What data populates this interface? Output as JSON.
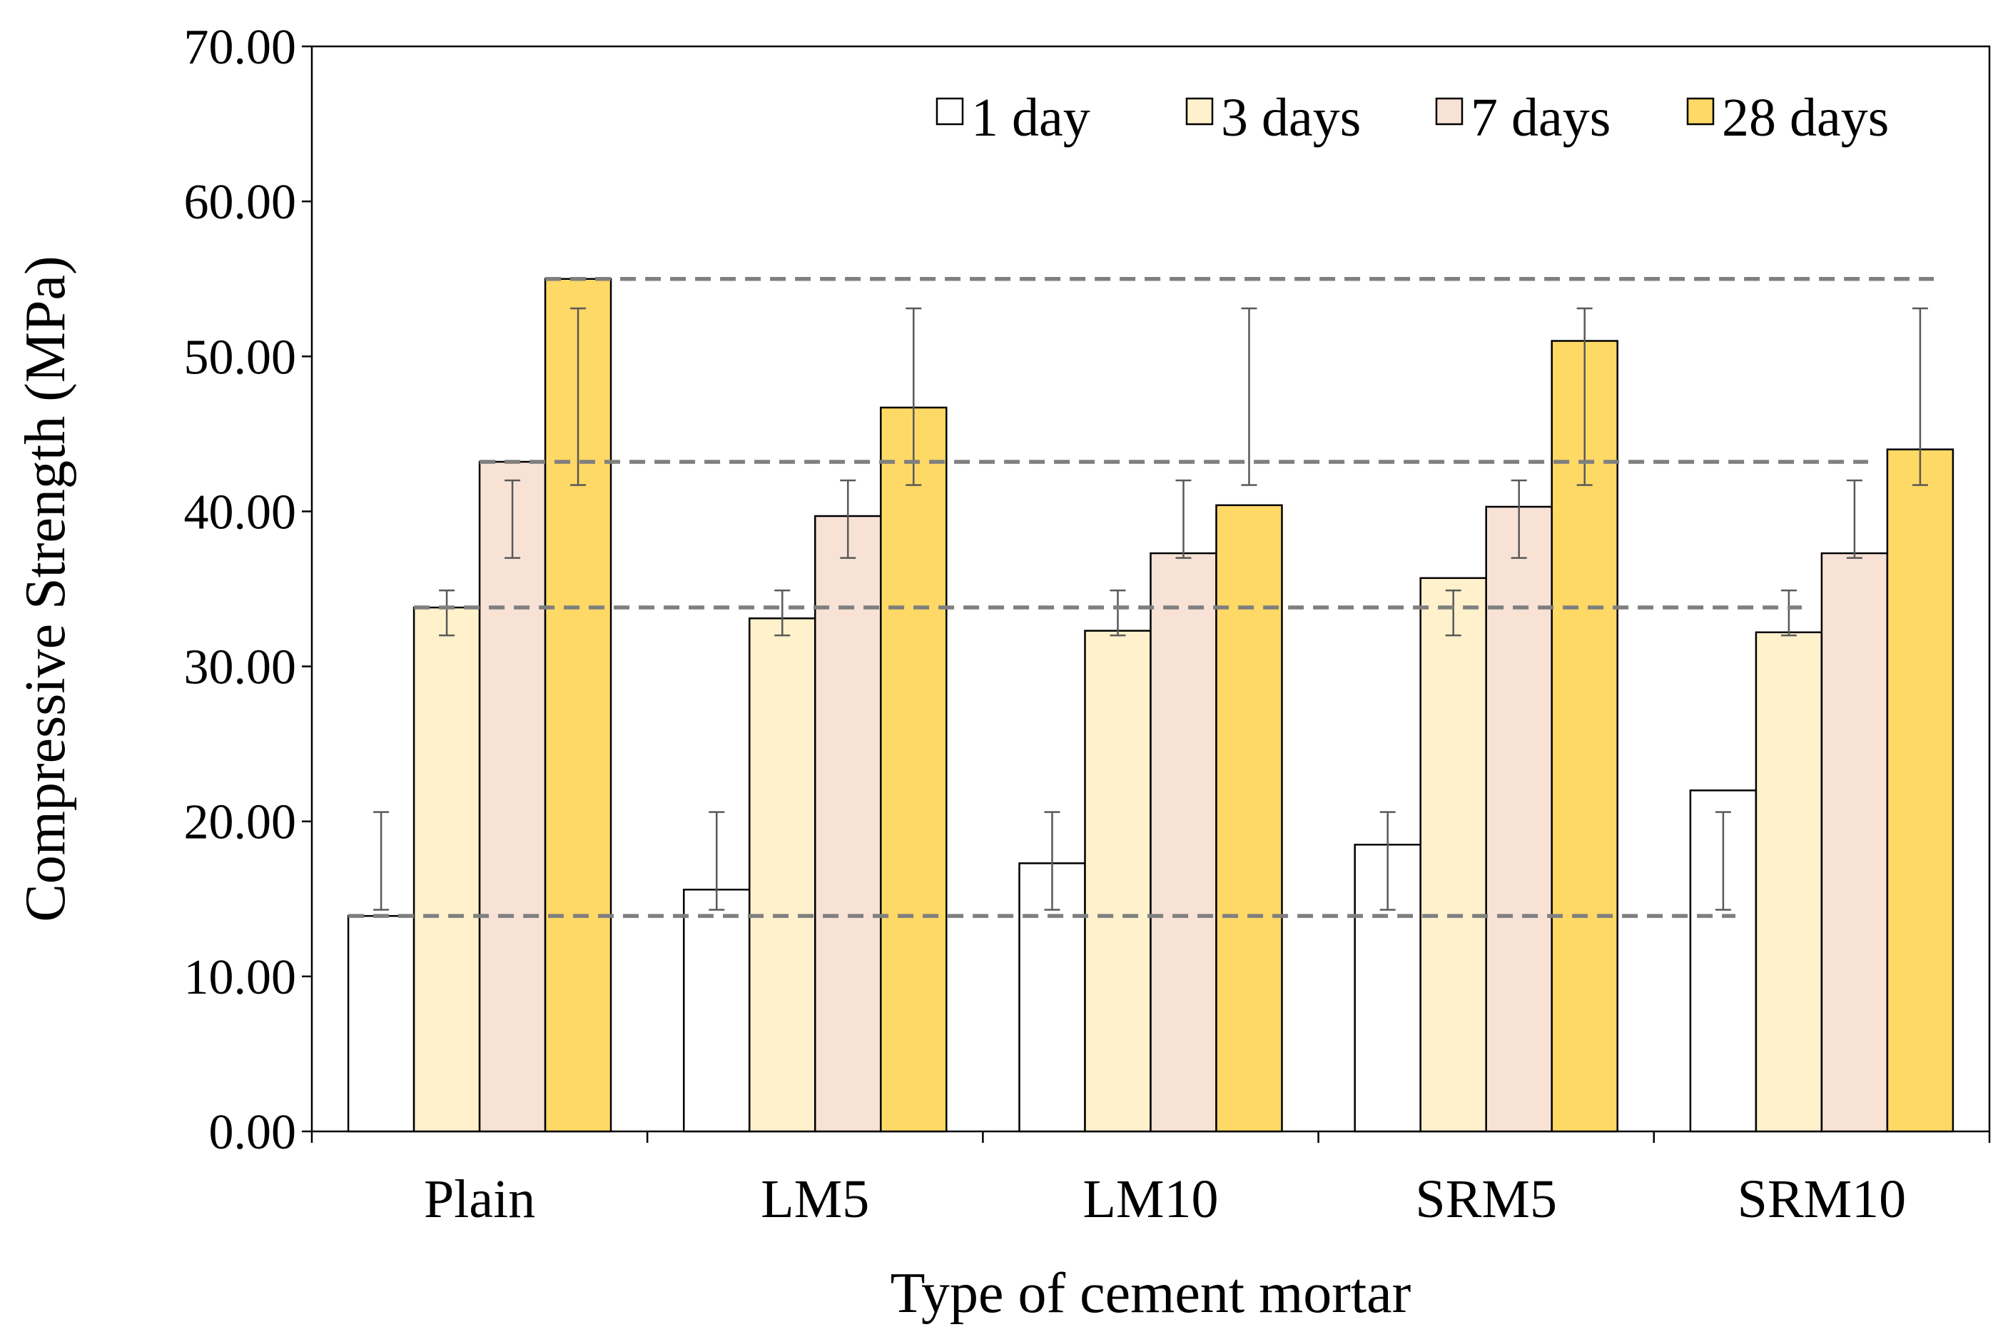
{
  "chart_data": {
    "type": "bar",
    "title": "",
    "xlabel": "Type of cement mortar",
    "ylabel": "Compressive Strength (MPa)",
    "ylim": [
      0,
      70
    ],
    "yticks": [
      "0.00",
      "10.00",
      "20.00",
      "30.00",
      "40.00",
      "50.00",
      "60.00",
      "70.00"
    ],
    "legend_position": "top-right",
    "grid": false,
    "categories": [
      "Plain",
      "LM5",
      "LM10",
      "SRM5",
      "SRM10"
    ],
    "series": [
      {
        "name": "1 day",
        "values": [
          13.9,
          15.6,
          17.3,
          18.5,
          22.0
        ],
        "error_bars": [
          [
            14.3,
            20.6
          ],
          [
            14.3,
            20.6
          ],
          [
            14.3,
            20.6
          ],
          [
            14.3,
            20.6
          ],
          [
            14.3,
            20.6
          ]
        ]
      },
      {
        "name": "3 days",
        "values": [
          33.8,
          33.1,
          32.3,
          35.7,
          32.2
        ],
        "error_bars": [
          [
            32.0,
            34.9
          ],
          [
            32.0,
            34.9
          ],
          [
            32.0,
            34.9
          ],
          [
            32.0,
            34.9
          ],
          [
            32.0,
            34.9
          ]
        ]
      },
      {
        "name": "7 days",
        "values": [
          43.2,
          39.7,
          37.3,
          40.3,
          37.3
        ],
        "error_bars": [
          [
            37.0,
            42.0
          ],
          [
            37.0,
            42.0
          ],
          [
            37.0,
            42.0
          ],
          [
            37.0,
            42.0
          ],
          [
            37.0,
            42.0
          ]
        ]
      },
      {
        "name": "28 days",
        "values": [
          55.0,
          46.7,
          40.4,
          51.0,
          44.0
        ],
        "error_bars": [
          [
            41.7,
            53.1
          ],
          [
            41.7,
            53.1
          ],
          [
            41.7,
            53.1
          ],
          [
            41.7,
            53.1
          ],
          [
            41.7,
            53.1
          ]
        ]
      }
    ],
    "reference_lines": [
      {
        "series": "1 day",
        "value": 13.9
      },
      {
        "series": "3 days",
        "value": 33.8
      },
      {
        "series": "7 days",
        "value": 43.2
      },
      {
        "series": "28 days",
        "value": 55.0
      }
    ]
  },
  "colors": {
    "1 day": "#ffffff",
    "3 days": "#fff1cc",
    "7 days": "#f8e2d6",
    "28 days": "#ffd966",
    "bar_edge": "#000000",
    "reference_line": "#7f7f7f",
    "error_bar": "#595959"
  }
}
